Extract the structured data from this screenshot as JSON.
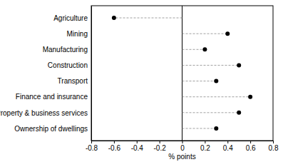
{
  "chart_data": {
    "type": "dot",
    "orientation": "horizontal",
    "categories": [
      "Agriculture",
      "Mining",
      "Manufacturing",
      "Construction",
      "Transport",
      "Finance and insurance",
      "Property & business services",
      "Ownership of dwellings"
    ],
    "values": [
      -0.6,
      0.4,
      0.2,
      0.5,
      0.3,
      0.6,
      0.5,
      0.3
    ],
    "color": "#000000",
    "marker": "circle",
    "line_style": "dashed",
    "x_label": "% points",
    "xlim": [
      -0.8,
      0.8
    ],
    "xticks": [
      -0.8,
      -0.6,
      -0.4,
      -0.2,
      0,
      0.2,
      0.4,
      0.6,
      0.8
    ],
    "grid": false
  }
}
